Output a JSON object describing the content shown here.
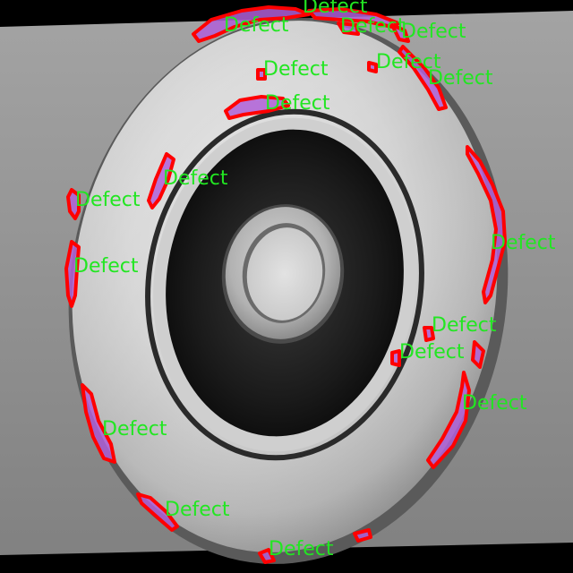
{
  "image": {
    "subject": "metal casting impeller disc",
    "background_color": "#8e8e8e"
  },
  "overlay": {
    "label_text": "Defect",
    "label_color": "#22e622",
    "outline_color": "#ff0000",
    "fill_color": "#b060d8"
  },
  "detections": [
    {
      "label": "Defect"
    },
    {
      "label": "Defect"
    },
    {
      "label": "Defect"
    },
    {
      "label": "Defect"
    },
    {
      "label": "Defect"
    },
    {
      "label": "Defect"
    },
    {
      "label": "Defect"
    },
    {
      "label": "Defect"
    },
    {
      "label": "Defect"
    },
    {
      "label": "Defect"
    },
    {
      "label": "Defect"
    },
    {
      "label": "Defect"
    },
    {
      "label": "Defect"
    },
    {
      "label": "Defect"
    },
    {
      "label": "Defect"
    },
    {
      "label": "Defect"
    },
    {
      "label": "Defect"
    },
    {
      "label": "Defect"
    }
  ]
}
